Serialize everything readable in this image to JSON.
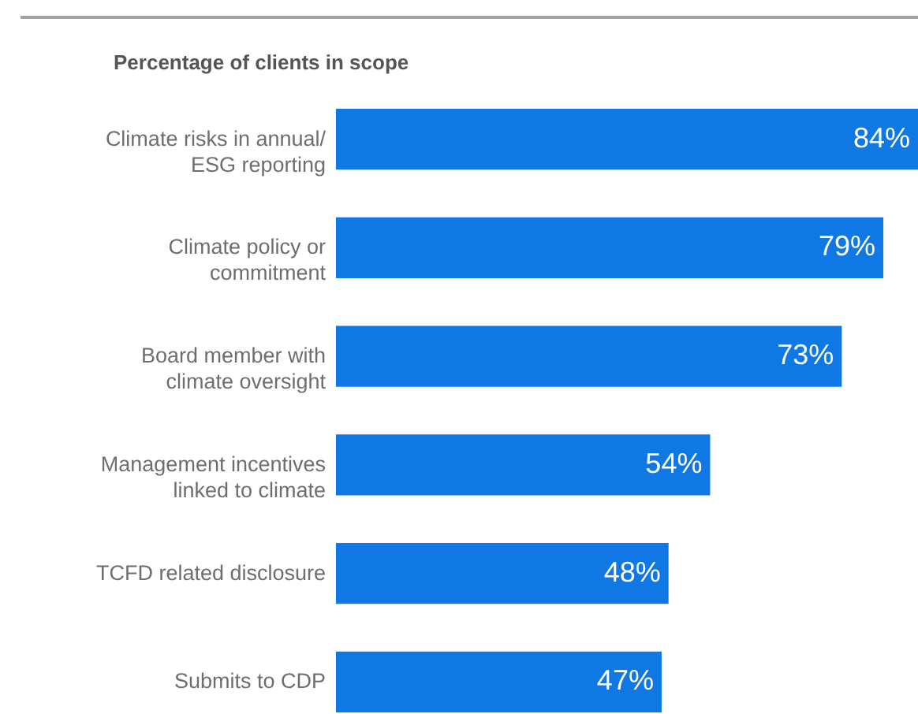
{
  "chart_data": {
    "type": "bar",
    "orientation": "horizontal",
    "title": "Percentage of clients in scope",
    "categories": [
      "Climate risks in annual/\nESG reporting",
      "Climate policy or\ncommitment",
      "Board member with\nclimate oversight",
      "Management incentives\nlinked to climate",
      "TCFD related disclosure",
      "Submits to CDP"
    ],
    "values": [
      84,
      79,
      73,
      54,
      48,
      47
    ],
    "value_labels": [
      "84%",
      "79%",
      "73%",
      "54%",
      "48%",
      "47%"
    ],
    "color": "#1078e5",
    "tick_labels": "y"
  }
}
